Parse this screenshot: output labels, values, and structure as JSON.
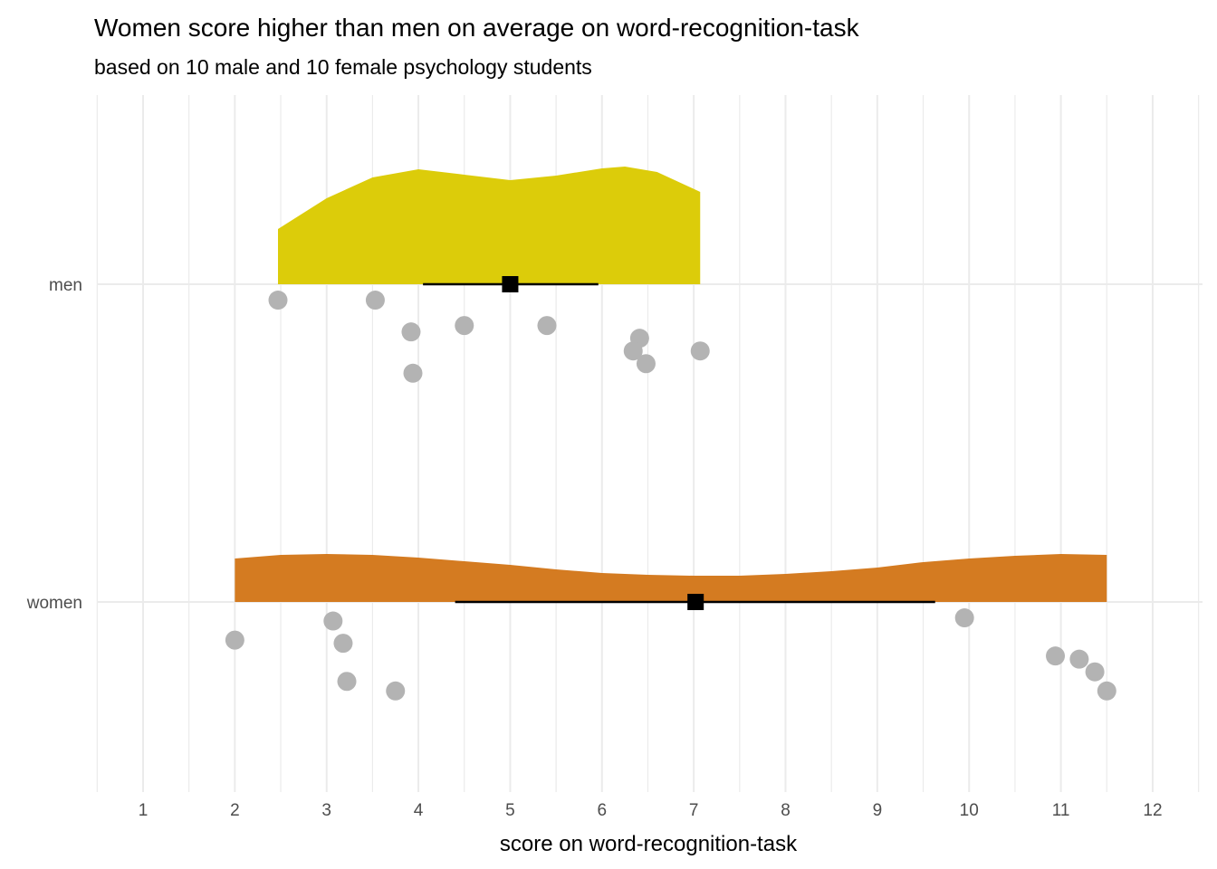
{
  "chart_data": {
    "type": "raincloud",
    "title": "Women score higher than men on average on word-recognition-task",
    "subtitle": "based on 10 male and 10 female psychology students",
    "xlabel": "score on word-recognition-task",
    "ylabel": "",
    "xlim": [
      0.5,
      12.5
    ],
    "x_ticks": [
      "1",
      "2",
      "3",
      "4",
      "5",
      "6",
      "7",
      "8",
      "9",
      "10",
      "11",
      "12"
    ],
    "grid": true,
    "categories": [
      "men",
      "women"
    ],
    "colors": {
      "men": "#dccc0a",
      "women": "#d47b21",
      "points": "#b3b3b3",
      "summary": "#000000",
      "grid": "#ebebeb"
    },
    "series": [
      {
        "name": "men",
        "points": [
          2.47,
          3.53,
          3.92,
          3.94,
          4.5,
          5.4,
          6.41,
          6.34,
          6.48,
          7.07
        ],
        "jitter": [
          0.05,
          0.05,
          0.15,
          0.28,
          0.13,
          0.13,
          0.17,
          0.21,
          0.25,
          0.21
        ],
        "mean": 5.0,
        "interval": [
          4.05,
          5.96
        ],
        "density": [
          [
            2.47,
            0.061
          ],
          [
            3.0,
            0.095
          ],
          [
            3.5,
            0.118
          ],
          [
            4.0,
            0.127
          ],
          [
            4.5,
            0.121
          ],
          [
            5.0,
            0.115
          ],
          [
            5.5,
            0.12
          ],
          [
            6.0,
            0.128
          ],
          [
            6.25,
            0.13
          ],
          [
            6.6,
            0.124
          ],
          [
            7.07,
            0.102
          ]
        ]
      },
      {
        "name": "women",
        "points": [
          2.0,
          3.07,
          3.18,
          3.22,
          3.75,
          9.95,
          10.94,
          11.2,
          11.37,
          11.5
        ],
        "jitter": [
          0.12,
          0.06,
          0.13,
          0.25,
          0.28,
          0.05,
          0.17,
          0.18,
          0.22,
          0.28
        ],
        "mean": 7.02,
        "interval": [
          4.4,
          9.63
        ],
        "density": [
          [
            2.0,
            0.048
          ],
          [
            2.5,
            0.052
          ],
          [
            3.0,
            0.053
          ],
          [
            3.5,
            0.052
          ],
          [
            4.0,
            0.049
          ],
          [
            4.5,
            0.045
          ],
          [
            5.0,
            0.041
          ],
          [
            5.5,
            0.036
          ],
          [
            6.0,
            0.032
          ],
          [
            6.5,
            0.03
          ],
          [
            7.0,
            0.029
          ],
          [
            7.5,
            0.029
          ],
          [
            8.0,
            0.031
          ],
          [
            8.5,
            0.034
          ],
          [
            9.0,
            0.038
          ],
          [
            9.5,
            0.044
          ],
          [
            10.0,
            0.048
          ],
          [
            10.5,
            0.051
          ],
          [
            11.0,
            0.053
          ],
          [
            11.5,
            0.052
          ]
        ]
      }
    ]
  }
}
